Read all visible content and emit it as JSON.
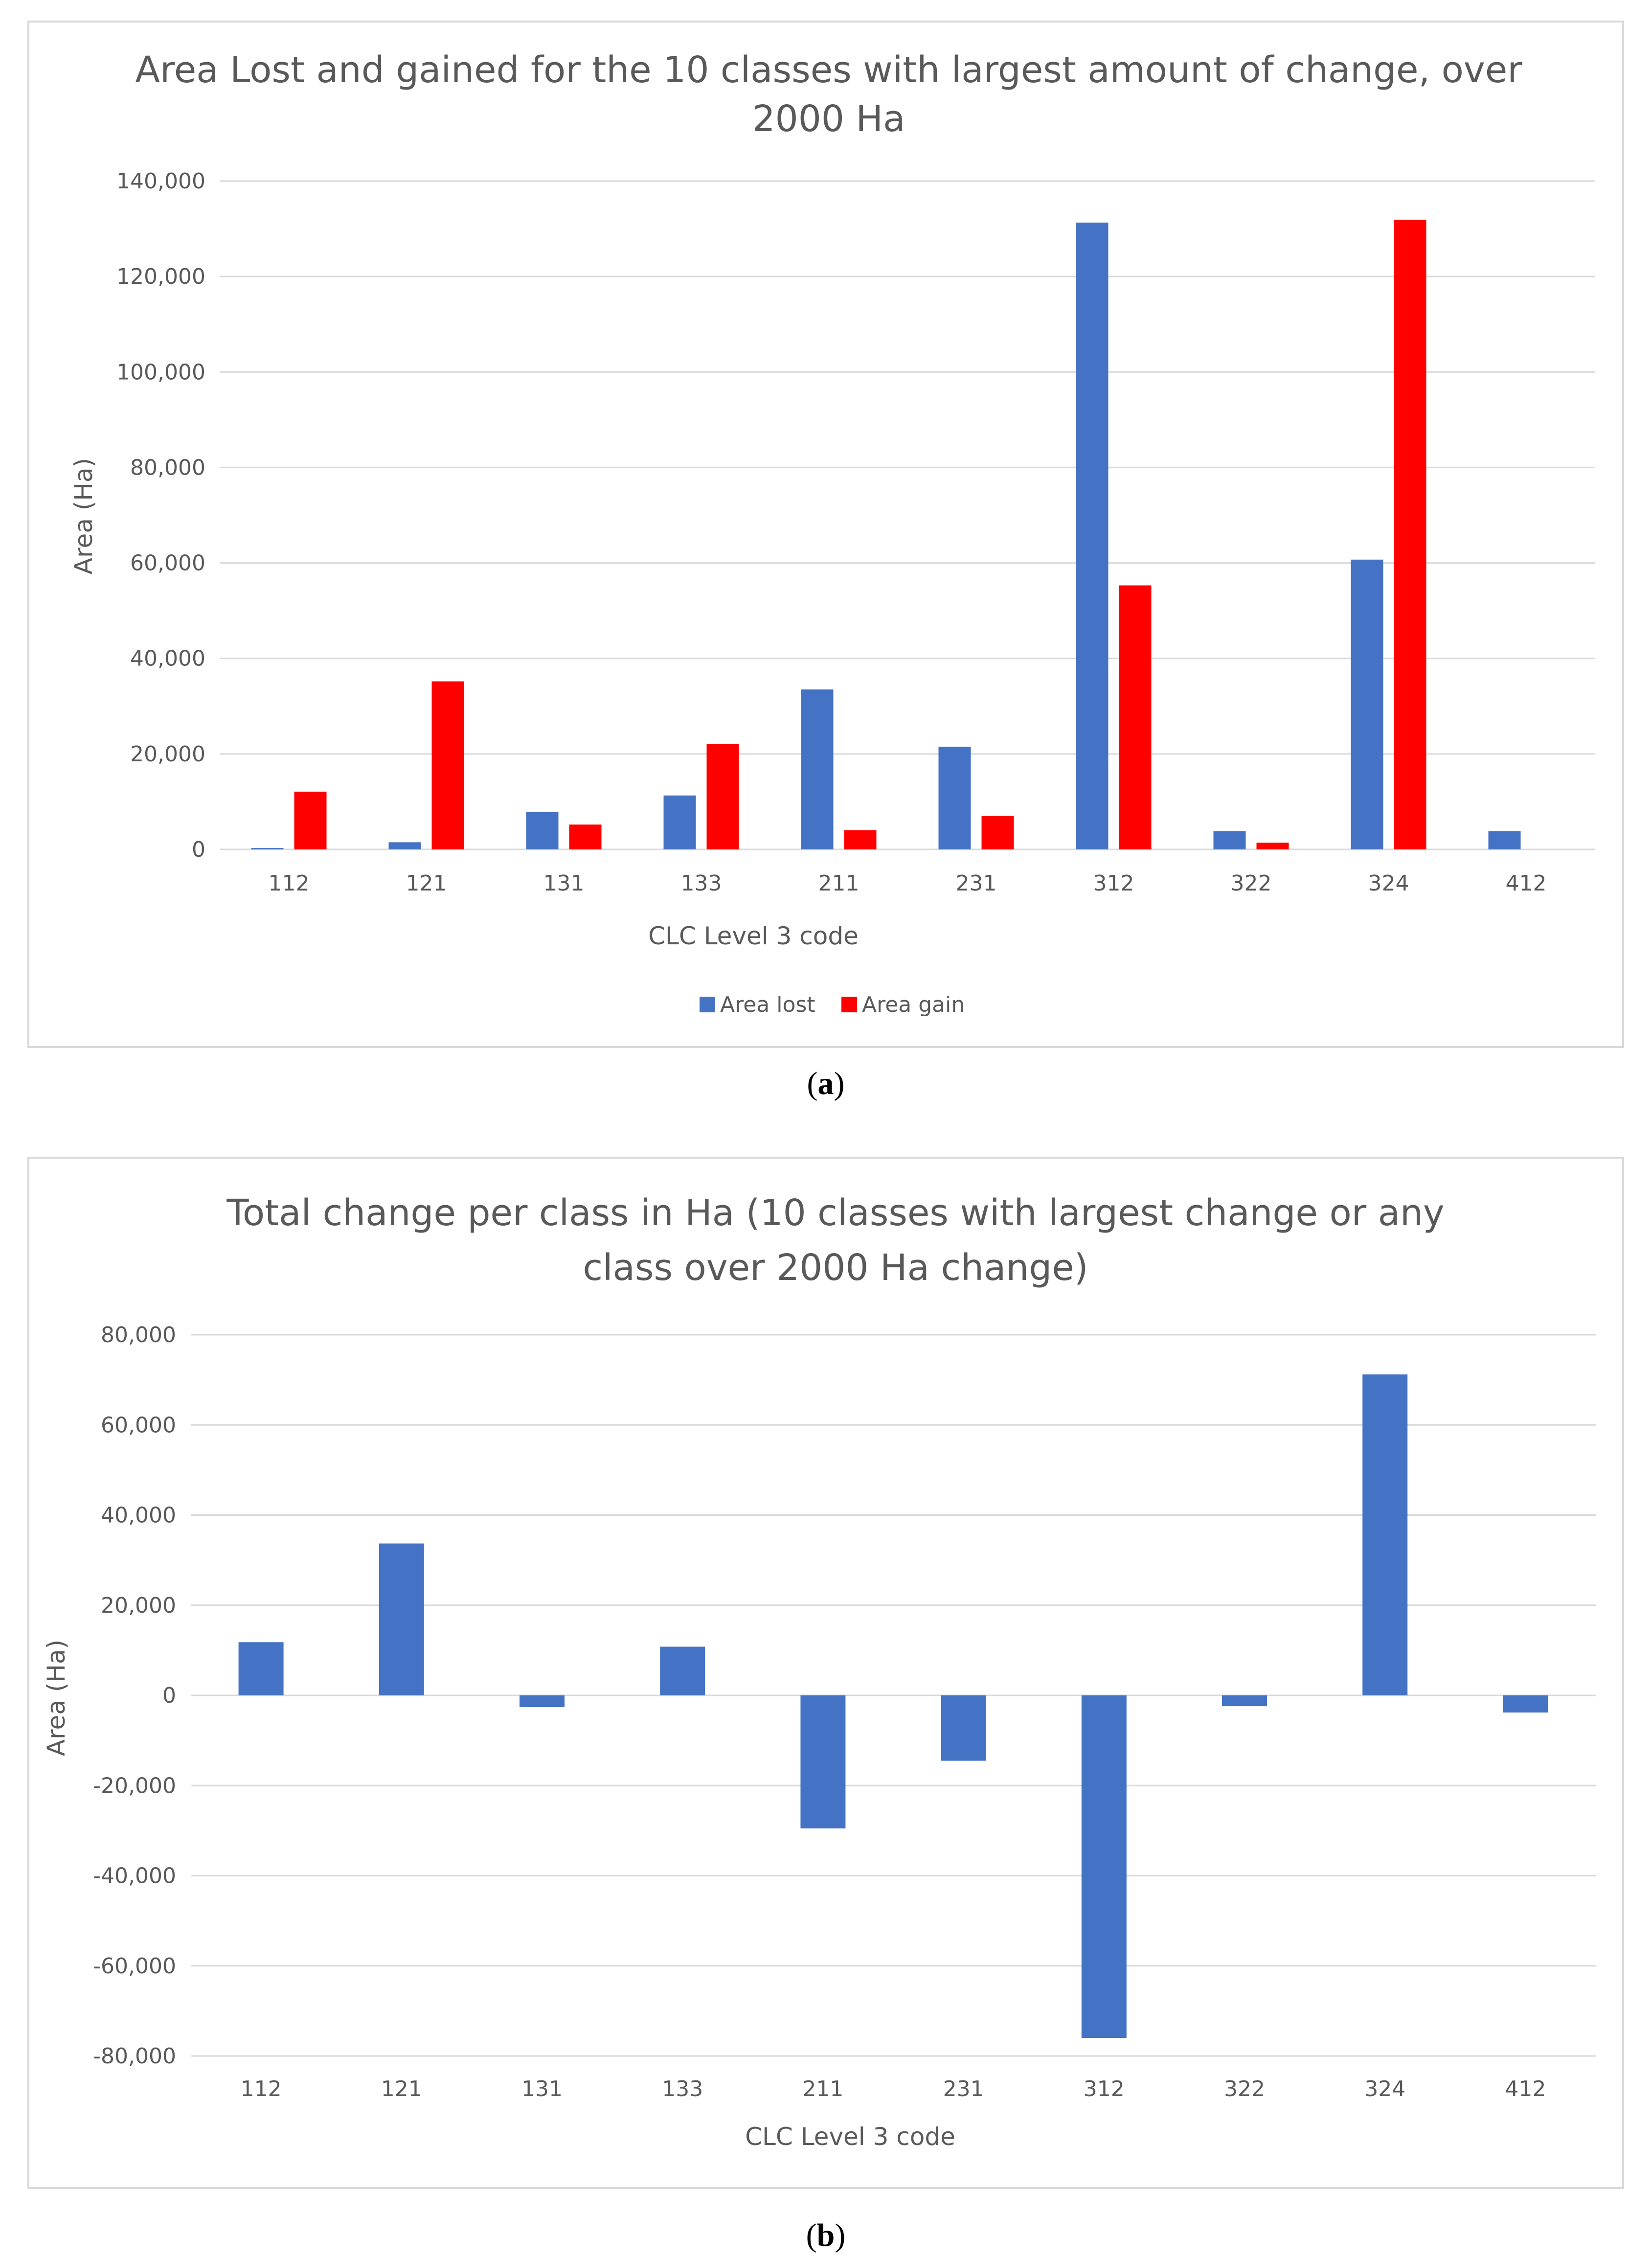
{
  "chart_data": [
    {
      "type": "bar",
      "title": "Area Lost and gained for the 10 classes with largest amount of change, over 2000 Ha",
      "title_lines": [
        "Area Lost and gained for the 10 classes with largest amount of change, over",
        "2000 Ha"
      ],
      "xlabel": "CLC Level 3 code",
      "ylabel": "Area (Ha)",
      "ylim": [
        0,
        140000
      ],
      "yticks": [
        0,
        20000,
        40000,
        60000,
        80000,
        100000,
        120000,
        140000
      ],
      "ytick_labels": [
        "0",
        "20,000",
        "40,000",
        "60,000",
        "80,000",
        "100,000",
        "120,000",
        "140,000"
      ],
      "grid": true,
      "legend_position": "bottom",
      "categories": [
        "112",
        "121",
        "131",
        "133",
        "211",
        "231",
        "312",
        "322",
        "324",
        "412"
      ],
      "series": [
        {
          "name": "Area lost",
          "color": "#4472c4",
          "values": [
            300,
            1500,
            7800,
            11300,
            33500,
            21500,
            131300,
            3800,
            60700,
            3800
          ]
        },
        {
          "name": "Area gain",
          "color": "#ff0000",
          "values": [
            12100,
            35200,
            5200,
            22100,
            4000,
            7000,
            55300,
            1400,
            131900,
            0
          ]
        }
      ],
      "caption": "a"
    },
    {
      "type": "bar",
      "title": "Total change per class in Ha (10 classes with largest change or any class over 2000 Ha change)",
      "title_lines": [
        "Total change per class in Ha (10 classes with largest change or any",
        "class over 2000 Ha change)"
      ],
      "xlabel": "CLC Level 3 code",
      "ylabel": "Area (Ha)",
      "ylim": [
        -80000,
        80000
      ],
      "yticks": [
        -80000,
        -60000,
        -40000,
        -20000,
        0,
        20000,
        40000,
        60000,
        80000
      ],
      "ytick_labels": [
        "-80,000",
        "-60,000",
        "-40,000",
        "-20,000",
        "0",
        "20,000",
        "40,000",
        "60,000",
        "80,000"
      ],
      "grid": true,
      "categories": [
        "112",
        "121",
        "131",
        "133",
        "211",
        "231",
        "312",
        "322",
        "324",
        "412"
      ],
      "series": [
        {
          "name": "Total change",
          "color": "#4472c4",
          "values": [
            11800,
            33700,
            -2600,
            10800,
            -29500,
            -14500,
            -76000,
            -2400,
            71200,
            -3800
          ]
        }
      ],
      "caption": "b"
    }
  ],
  "captions": [
    {
      "open": "(",
      "letter": "a",
      "close": ")"
    },
    {
      "open": "(",
      "letter": "b",
      "close": ")"
    }
  ]
}
